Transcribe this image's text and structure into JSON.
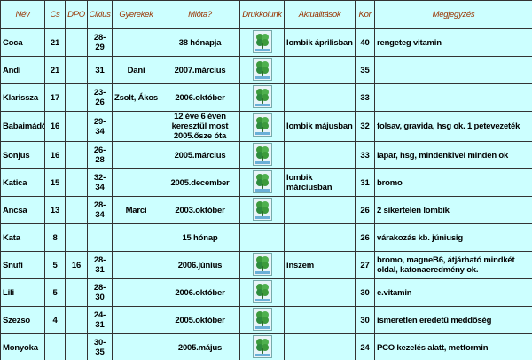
{
  "table": {
    "header": [
      "Név",
      "Cs",
      "DPO",
      "Ciklus",
      "Gyerekek",
      "Mióta?",
      "Drukkolunk",
      "Aktualitások",
      "Kor",
      "Megjegyzés"
    ],
    "rows": [
      [
        "Coca",
        "21",
        null,
        "28-29",
        null,
        "38 hónapja",
        null,
        "lombik áprilisban",
        "40",
        "rengeteg vitamin"
      ],
      [
        "Andi",
        "21",
        null,
        "31",
        "Dani",
        "2007.március",
        null,
        null,
        "35",
        null
      ],
      [
        "Klarissza",
        "17",
        null,
        "23-26",
        "Zsolt, Ákos",
        "2006.október",
        null,
        null,
        "33",
        null
      ],
      [
        "Babaimádó",
        "16",
        null,
        "29-34",
        null,
        "12 éve 6 éven keresztül most 2005.ősze óta",
        null,
        "lombik májusban",
        "32",
        "folsav, gravida, hsg ok. 1 petevezeték"
      ],
      [
        "Sonjus",
        "16",
        null,
        "26-28",
        null,
        "2005.március",
        null,
        null,
        "33",
        "lapar, hsg, mindenkivel minden ok"
      ],
      [
        "Katica",
        "15",
        null,
        "32-34",
        null,
        "2005.december",
        null,
        "lombik márciusban",
        "31",
        "bromo"
      ],
      [
        "Ancsa",
        "13",
        null,
        "28-34",
        "Marci",
        "2003.október",
        null,
        null,
        "26",
        "2 sikertelen lombik"
      ],
      [
        "Kata",
        "8",
        null,
        null,
        null,
        "15 hónap",
        null,
        null,
        "26",
        "várakozás kb. júniusig"
      ],
      [
        "Snufi",
        "5",
        "16",
        "28-31",
        null,
        "2006.június",
        null,
        "inszem",
        "27",
        "bromo, magneB6, átjárható mindkét oldal, katonaeredmény ok."
      ],
      [
        "Lili",
        "5",
        null,
        "28-30",
        null,
        "2006.október",
        null,
        null,
        "30",
        "e.vitamin"
      ],
      [
        "Szezso",
        "4",
        null,
        "24-31",
        null,
        "2005.október",
        null,
        null,
        "30",
        "ismeretlen eredetű meddőség"
      ],
      [
        "Monyoka",
        null,
        null,
        "30-35",
        null,
        "2005.május",
        null,
        null,
        "24",
        "PCO kezelés alatt, metformin"
      ]
    ]
  }
}
